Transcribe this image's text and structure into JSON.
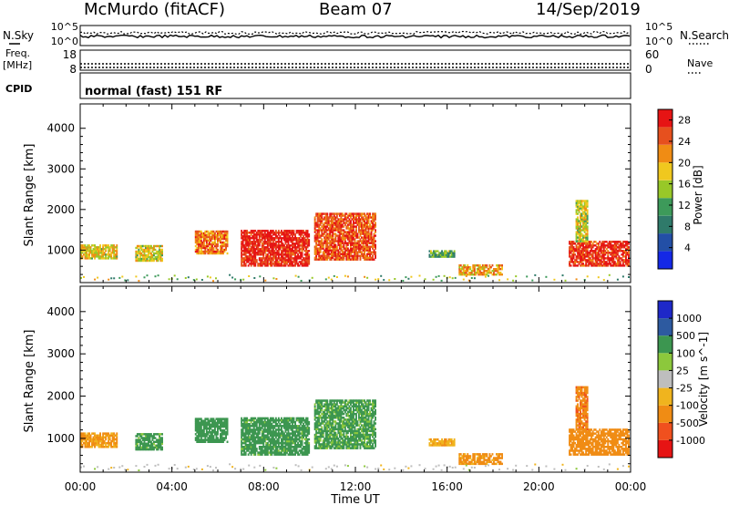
{
  "header": {
    "station": "McMurdo (fitACF)",
    "beam": "Beam 07",
    "date": "14/Sep/2019"
  },
  "strip": {
    "nsky_label": "N.Sky",
    "nsky_top": "10^5",
    "nsky_bottom": "10^0",
    "nsearch_label": "N.Search",
    "nsearch_top": "10^5",
    "nsearch_bottom": "10^0",
    "freq_label_1": "Freq.",
    "freq_label_2": "[MHz]",
    "freq_top": "18",
    "freq_bottom": "8",
    "nave_label": "Nave",
    "nave_top": "60",
    "nave_bottom": "0",
    "cpid_label": "CPID",
    "cpid_value": "normal (fast) 151 RF"
  },
  "colors": {
    "power": [
      "#1428e6",
      "#234fa6",
      "#2f7a6a",
      "#3d9a5a",
      "#98c828",
      "#f0c81e",
      "#f08c14",
      "#e6501e",
      "#e61414"
    ],
    "velocity": [
      "#e61414",
      "#f0501e",
      "#f08c14",
      "#f0b41e",
      "#bebebe",
      "#8cc83c",
      "#3c9650",
      "#2d5aa0",
      "#1e28c8"
    ]
  },
  "chart_data": [
    {
      "type": "heatmap",
      "name": "power-panel",
      "ylabel": "Slant Range [km]",
      "xlabel": "Time UT",
      "y_ticks": [
        "1000",
        "2000",
        "3000",
        "4000"
      ],
      "ylim": [
        200,
        4600
      ],
      "x_ticks": [
        "00:00",
        "04:00",
        "08:00",
        "12:00",
        "16:00",
        "20:00",
        "00:00"
      ],
      "xlim_hours": [
        0,
        24
      ],
      "colorbar": {
        "label": "Power [dB]",
        "ticks": [
          "4",
          "8",
          "12",
          "16",
          "20",
          "24",
          "28"
        ],
        "range": [
          0,
          30
        ]
      },
      "echo_regions": [
        {
          "t0": 0.0,
          "t1": 1.6,
          "r0": 780,
          "r1": 1120,
          "value": 18
        },
        {
          "t0": 2.4,
          "t1": 3.6,
          "r0": 720,
          "r1": 1100,
          "value": 17
        },
        {
          "t0": 5.0,
          "t1": 6.4,
          "r0": 900,
          "r1": 1450,
          "value": 23
        },
        {
          "t0": 7.0,
          "t1": 10.0,
          "r0": 600,
          "r1": 1500,
          "value": 28
        },
        {
          "t0": 10.2,
          "t1": 12.9,
          "r0": 750,
          "r1": 1900,
          "value": 25
        },
        {
          "t0": 15.2,
          "t1": 16.3,
          "r0": 820,
          "r1": 1000,
          "value": 12
        },
        {
          "t0": 16.5,
          "t1": 18.4,
          "r0": 380,
          "r1": 620,
          "value": 20
        },
        {
          "t0": 21.3,
          "t1": 23.9,
          "r0": 600,
          "r1": 1200,
          "value": 27
        },
        {
          "t0": 21.6,
          "t1": 22.1,
          "r0": 1200,
          "r1": 2200,
          "value": 17
        }
      ]
    },
    {
      "type": "heatmap",
      "name": "velocity-panel",
      "ylabel": "Slant Range [km]",
      "xlabel": "Time UT",
      "y_ticks": [
        "1000",
        "2000",
        "3000",
        "4000"
      ],
      "ylim": [
        200,
        4600
      ],
      "x_ticks": [
        "00:00",
        "04:00",
        "08:00",
        "12:00",
        "16:00",
        "20:00",
        "00:00"
      ],
      "xlim_hours": [
        0,
        24
      ],
      "colorbar": {
        "label": "Velocity [m s^-1]",
        "ticks": [
          "1000",
          "500",
          "100",
          "25",
          "-25",
          "-100",
          "-500",
          "-1000"
        ]
      },
      "echo_regions": [
        {
          "t0": 0.0,
          "t1": 1.6,
          "r0": 780,
          "r1": 1120,
          "value": -120
        },
        {
          "t0": 2.4,
          "t1": 3.6,
          "r0": 720,
          "r1": 1100,
          "value": 150
        },
        {
          "t0": 5.0,
          "t1": 6.4,
          "r0": 900,
          "r1": 1450,
          "value": 200
        },
        {
          "t0": 7.0,
          "t1": 10.0,
          "r0": 600,
          "r1": 1500,
          "value": 180
        },
        {
          "t0": 10.2,
          "t1": 12.9,
          "r0": 750,
          "r1": 1900,
          "value": 140
        },
        {
          "t0": 15.2,
          "t1": 16.3,
          "r0": 820,
          "r1": 1000,
          "value": -80
        },
        {
          "t0": 16.5,
          "t1": 18.4,
          "r0": 380,
          "r1": 620,
          "value": -150
        },
        {
          "t0": 21.3,
          "t1": 23.9,
          "r0": 600,
          "r1": 1200,
          "value": -300
        },
        {
          "t0": 21.6,
          "t1": 22.1,
          "r0": 1200,
          "r1": 2200,
          "value": -400
        }
      ]
    }
  ]
}
